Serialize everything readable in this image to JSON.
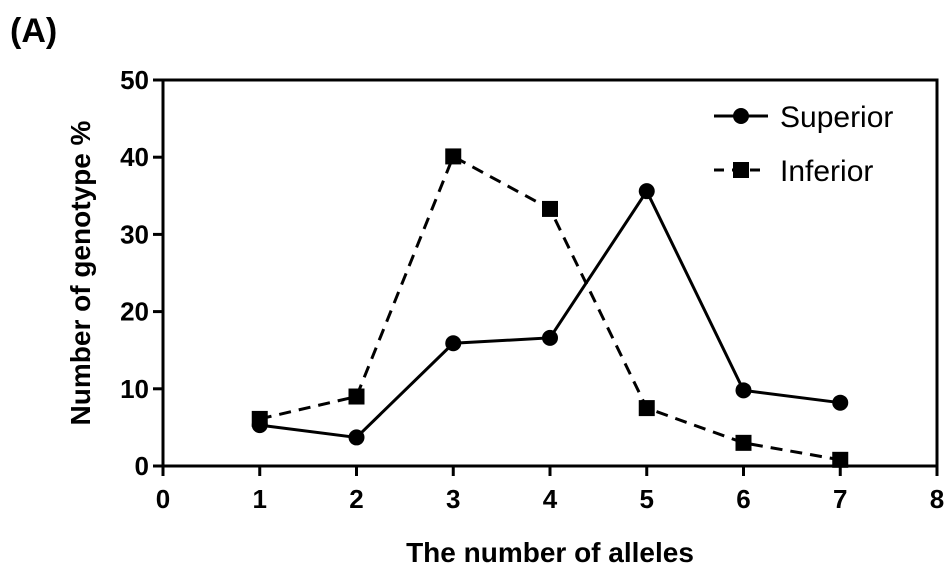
{
  "panel_label": "(A)",
  "chart_data": {
    "type": "line",
    "title": "",
    "xlabel": "The number of alleles",
    "ylabel": "Number of genotype %",
    "xlim": [
      0,
      8
    ],
    "ylim": [
      0,
      50
    ],
    "x_ticks": [
      0,
      1,
      2,
      3,
      4,
      5,
      6,
      7,
      8
    ],
    "y_ticks": [
      0,
      10,
      20,
      30,
      40,
      50
    ],
    "grid": false,
    "legend_position": "top-right",
    "series": [
      {
        "name": "Superior",
        "marker": "circle",
        "line_style": "solid",
        "color": "#000000",
        "x": [
          1,
          2,
          3,
          4,
          5,
          6,
          7
        ],
        "values": [
          5.3,
          3.7,
          15.9,
          16.6,
          35.6,
          9.8,
          8.2
        ]
      },
      {
        "name": "Inferior",
        "marker": "square",
        "line_style": "dashed",
        "color": "#000000",
        "x": [
          1,
          2,
          3,
          4,
          5,
          6,
          7
        ],
        "values": [
          6.1,
          9.0,
          40.1,
          33.3,
          7.5,
          3.0,
          0.8
        ]
      }
    ]
  }
}
